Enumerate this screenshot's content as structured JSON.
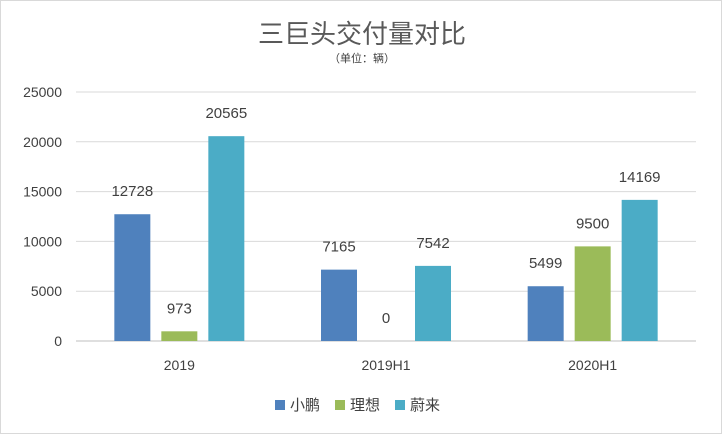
{
  "chart_data": {
    "type": "bar",
    "title": "三巨头交付量对比",
    "subtitle": "（单位：辆）",
    "categories": [
      "2019",
      "2019H1",
      "2020H1"
    ],
    "series": [
      {
        "name": "小鹏",
        "color": "#4f81bd",
        "values": [
          12728,
          7165,
          5499
        ]
      },
      {
        "name": "理想",
        "color": "#9bbb59",
        "values": [
          973,
          0,
          9500
        ]
      },
      {
        "name": "蔚来",
        "color": "#4bacc6",
        "values": [
          20565,
          7542,
          14169
        ]
      }
    ],
    "ylim": [
      0,
      25000
    ],
    "yticks": [
      0,
      5000,
      10000,
      15000,
      20000,
      25000
    ],
    "grid": true,
    "legend": "bottom"
  }
}
